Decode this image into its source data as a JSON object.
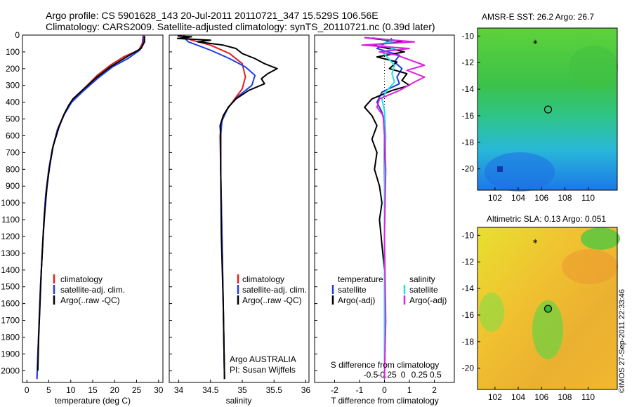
{
  "header": {
    "title_line1": "Argo profile: CS 5901628_143 20-Jul-2011 20110721_347 15.529S 106.56E",
    "title_line2": "Climatology: CARS2009. Satellite-adjusted climatology: synTS_20110721.nc (0.39d later)"
  },
  "stamp": "©IMOS 27-Sep-2011 22:33:46",
  "colors": {
    "climatology": "#e02020",
    "satellite": "#1f3ee0",
    "argo": "#000000",
    "sal_satellite": "#22e0e0",
    "sal_argo": "#e020e0",
    "frame": "#000000"
  },
  "depth_axis": {
    "ticks": [
      0,
      100,
      200,
      300,
      400,
      500,
      600,
      700,
      800,
      900,
      1000,
      1100,
      1200,
      1300,
      1400,
      1500,
      1600,
      1700,
      1800,
      1900,
      2000
    ],
    "ylim": [
      0,
      2070
    ]
  },
  "chart_data": [
    {
      "id": "temperature",
      "type": "line",
      "xlabel": "temperature (deg C)",
      "xlim": [
        -1,
        31
      ],
      "xticks": [
        0,
        5,
        10,
        15,
        20,
        25,
        30
      ],
      "legend": [
        "climatology",
        "satellite-adj. clim.",
        "Argo(..raw -QC)"
      ],
      "series": [
        {
          "name": "climatology",
          "color": "#e02020",
          "points": [
            [
              26.5,
              0
            ],
            [
              26.3,
              50
            ],
            [
              25.5,
              90
            ],
            [
              22,
              130
            ],
            [
              19,
              180
            ],
            [
              16,
              240
            ],
            [
              13,
              320
            ],
            [
              10,
              400
            ],
            [
              8.5,
              470
            ],
            [
              7,
              560
            ],
            [
              5.8,
              680
            ],
            [
              5,
              800
            ],
            [
              4.3,
              950
            ],
            [
              3.9,
              1100
            ],
            [
              3.5,
              1300
            ],
            [
              3.1,
              1500
            ],
            [
              2.8,
              1700
            ],
            [
              2.5,
              1900
            ],
            [
              2.3,
              2050
            ]
          ]
        },
        {
          "name": "satellite-adj. clim.",
          "color": "#1f3ee0",
          "points": [
            [
              26.7,
              0
            ],
            [
              26.5,
              50
            ],
            [
              25.7,
              90
            ],
            [
              23,
              140
            ],
            [
              19.5,
              190
            ],
            [
              16.5,
              250
            ],
            [
              13,
              330
            ],
            [
              10.2,
              400
            ],
            [
              8.6,
              470
            ],
            [
              7,
              560
            ],
            [
              5.8,
              680
            ],
            [
              5,
              800
            ],
            [
              4.3,
              950
            ],
            [
              3.9,
              1100
            ],
            [
              3.5,
              1300
            ],
            [
              3.1,
              1500
            ],
            [
              2.8,
              1700
            ],
            [
              2.5,
              1900
            ],
            [
              2.3,
              2050
            ]
          ]
        },
        {
          "name": "Argo(..raw -QC)",
          "color": "#000000",
          "points": [
            [
              26.8,
              5
            ],
            [
              26.8,
              40
            ],
            [
              26,
              80
            ],
            [
              24,
              110
            ],
            [
              21.5,
              150
            ],
            [
              19,
              190
            ],
            [
              16,
              250
            ],
            [
              13,
              320
            ],
            [
              10.5,
              380
            ],
            [
              9.5,
              420
            ],
            [
              8.5,
              470
            ],
            [
              7.3,
              550
            ],
            [
              6,
              660
            ],
            [
              5.2,
              780
            ],
            [
              4.6,
              900
            ],
            [
              4.1,
              1050
            ],
            [
              3.7,
              1200
            ],
            [
              3.3,
              1400
            ],
            [
              3,
              1600
            ],
            [
              2.7,
              1800
            ],
            [
              2.5,
              2000
            ]
          ]
        }
      ]
    },
    {
      "id": "salinity",
      "type": "line",
      "xlabel": "salinity",
      "xlim": [
        33.85,
        36.05
      ],
      "xticks": [
        34,
        34.5,
        35,
        35.5,
        36
      ],
      "legend": [
        "climatology",
        "satellite-adj. clim.",
        "Argo(..raw -QC)"
      ],
      "annotation_line1": "Argo AUSTRALIA",
      "annotation_line2": "PI: Susan Wijffels",
      "series": [
        {
          "name": "climatology",
          "color": "#e02020",
          "points": [
            [
              34.05,
              0
            ],
            [
              34.2,
              30
            ],
            [
              34.5,
              60
            ],
            [
              34.8,
              110
            ],
            [
              35.0,
              170
            ],
            [
              35.05,
              250
            ],
            [
              35.0,
              320
            ],
            [
              34.88,
              380
            ],
            [
              34.75,
              450
            ],
            [
              34.67,
              520
            ],
            [
              34.65,
              600
            ],
            [
              34.66,
              800
            ],
            [
              34.68,
              1200
            ],
            [
              34.7,
              1600
            ],
            [
              34.72,
              2050
            ]
          ]
        },
        {
          "name": "satellite-adj. clim.",
          "color": "#1f3ee0",
          "points": [
            [
              34.05,
              0
            ],
            [
              34.15,
              40
            ],
            [
              34.5,
              90
            ],
            [
              34.8,
              140
            ],
            [
              35.05,
              190
            ],
            [
              35.2,
              240
            ],
            [
              35.15,
              300
            ],
            [
              34.95,
              360
            ],
            [
              34.78,
              430
            ],
            [
              34.68,
              510
            ],
            [
              34.66,
              600
            ],
            [
              34.66,
              800
            ],
            [
              34.68,
              1200
            ],
            [
              34.7,
              1600
            ],
            [
              34.72,
              2050
            ]
          ]
        },
        {
          "name": "Argo(..raw -QC)",
          "color": "#000000",
          "points": [
            [
              33.98,
              5
            ],
            [
              34.2,
              10
            ],
            [
              33.98,
              20
            ],
            [
              34.5,
              30
            ],
            [
              34.3,
              40
            ],
            [
              34.7,
              60
            ],
            [
              34.9,
              80
            ],
            [
              35.0,
              110
            ],
            [
              35.2,
              140
            ],
            [
              35.35,
              170
            ],
            [
              35.55,
              200
            ],
            [
              35.4,
              230
            ],
            [
              35.3,
              260
            ],
            [
              35.35,
              290
            ],
            [
              35.1,
              330
            ],
            [
              34.9,
              380
            ],
            [
              34.78,
              430
            ],
            [
              34.7,
              480
            ],
            [
              34.65,
              540
            ],
            [
              34.66,
              600
            ],
            [
              34.66,
              800
            ],
            [
              34.67,
              1200
            ],
            [
              34.7,
              1600
            ],
            [
              34.72,
              2050
            ]
          ]
        }
      ]
    },
    {
      "id": "difference",
      "type": "line",
      "xlabel": "T difference from climatology",
      "xlim": [
        -2.8,
        2.8
      ],
      "xticks": [
        -2,
        -1,
        0,
        1,
        2
      ],
      "top_axis_label": "S difference from climatology",
      "top_ticks": [
        -0.5,
        -0.25,
        0,
        0.25,
        0.5
      ],
      "zero_line": true,
      "legend_temperature": "temperature",
      "legend_salinity": "salinity",
      "legend_items": [
        "satellite",
        "Argo(-adj)",
        "satellite",
        "Argo(-adj)"
      ],
      "series": [
        {
          "name": "satellite",
          "quantity": "temperature",
          "color": "#1f3ee0",
          "points": [
            [
              0.3,
              20
            ],
            [
              -0.3,
              80
            ],
            [
              0.6,
              120
            ],
            [
              0.4,
              160
            ],
            [
              0.7,
              200
            ],
            [
              0.5,
              250
            ],
            [
              0.6,
              290
            ],
            [
              -0.1,
              340
            ],
            [
              -0.3,
              400
            ],
            [
              -0.1,
              460
            ],
            [
              0,
              520
            ],
            [
              0,
              700
            ],
            [
              0,
              1000
            ],
            [
              0,
              1500
            ],
            [
              0,
              2050
            ]
          ]
        },
        {
          "name": "Argo(-adj)",
          "quantity": "temperature",
          "color": "#000000",
          "points": [
            [
              -0.8,
              15
            ],
            [
              0.7,
              40
            ],
            [
              -0.5,
              60
            ],
            [
              0.8,
              100
            ],
            [
              -0.3,
              130
            ],
            [
              0.5,
              160
            ],
            [
              0.2,
              200
            ],
            [
              0.9,
              230
            ],
            [
              0.7,
              270
            ],
            [
              1.0,
              300
            ],
            [
              0.3,
              330
            ],
            [
              -0.5,
              380
            ],
            [
              -0.8,
              430
            ],
            [
              -0.5,
              480
            ],
            [
              -0.3,
              540
            ],
            [
              -0.5,
              620
            ],
            [
              -0.3,
              700
            ],
            [
              -0.4,
              800
            ],
            [
              -0.2,
              900
            ],
            [
              -0.1,
              1000
            ],
            [
              -0.2,
              1100
            ],
            [
              -0.1,
              1250
            ],
            [
              0,
              1400
            ],
            [
              0,
              1700
            ],
            [
              0,
              2050
            ]
          ]
        },
        {
          "name": "satellite",
          "quantity": "salinity",
          "color": "#22e0e0",
          "points": [
            [
              -0.5,
              15
            ],
            [
              0.5,
              35
            ],
            [
              -0.3,
              55
            ],
            [
              0.4,
              80
            ],
            [
              -0.1,
              100
            ],
            [
              0.1,
              130
            ],
            [
              0.4,
              180
            ],
            [
              0.3,
              230
            ],
            [
              0.4,
              280
            ],
            [
              0.1,
              330
            ],
            [
              -0.1,
              380
            ],
            [
              0,
              450
            ],
            [
              0.05,
              600
            ],
            [
              0,
              900
            ],
            [
              0,
              1500
            ],
            [
              0,
              2050
            ]
          ]
        },
        {
          "name": "Argo(-adj)",
          "quantity": "salinity",
          "color": "#e020e0",
          "points": [
            [
              -0.8,
              15
            ],
            [
              1.2,
              40
            ],
            [
              -0.9,
              60
            ],
            [
              1.0,
              80
            ],
            [
              -0.2,
              100
            ],
            [
              0.5,
              120
            ],
            [
              1.6,
              180
            ],
            [
              0.9,
              210
            ],
            [
              1.6,
              250
            ],
            [
              1.2,
              280
            ],
            [
              0.6,
              330
            ],
            [
              -0.2,
              380
            ],
            [
              -0.3,
              430
            ],
            [
              -0.05,
              480
            ],
            [
              0,
              600
            ],
            [
              0.05,
              800
            ],
            [
              0,
              1200
            ],
            [
              0.05,
              1700
            ],
            [
              0,
              2050
            ]
          ]
        }
      ]
    }
  ],
  "maps": [
    {
      "id": "sst",
      "title": "AMSR-E SST: 26.2 Argo: 26.7",
      "xticks": [
        102,
        104,
        106,
        108,
        110
      ],
      "yticks": [
        -10,
        -12,
        -14,
        -16,
        -18,
        -20
      ],
      "xlim": [
        100.5,
        112.5
      ],
      "ylim": [
        -21.6,
        -9.4
      ],
      "profile_lon": 106.56,
      "profile_lat": -15.529
    },
    {
      "id": "sla",
      "title": "Altimetric SLA: 0.13 Argo: 0.051",
      "xticks": [
        102,
        104,
        106,
        108,
        110
      ],
      "yticks": [
        -10,
        -12,
        -14,
        -16,
        -18,
        -20
      ],
      "xlim": [
        100.5,
        112.5
      ],
      "ylim": [
        -21.6,
        -9.4
      ],
      "profile_lon": 106.56,
      "profile_lat": -15.529
    }
  ]
}
